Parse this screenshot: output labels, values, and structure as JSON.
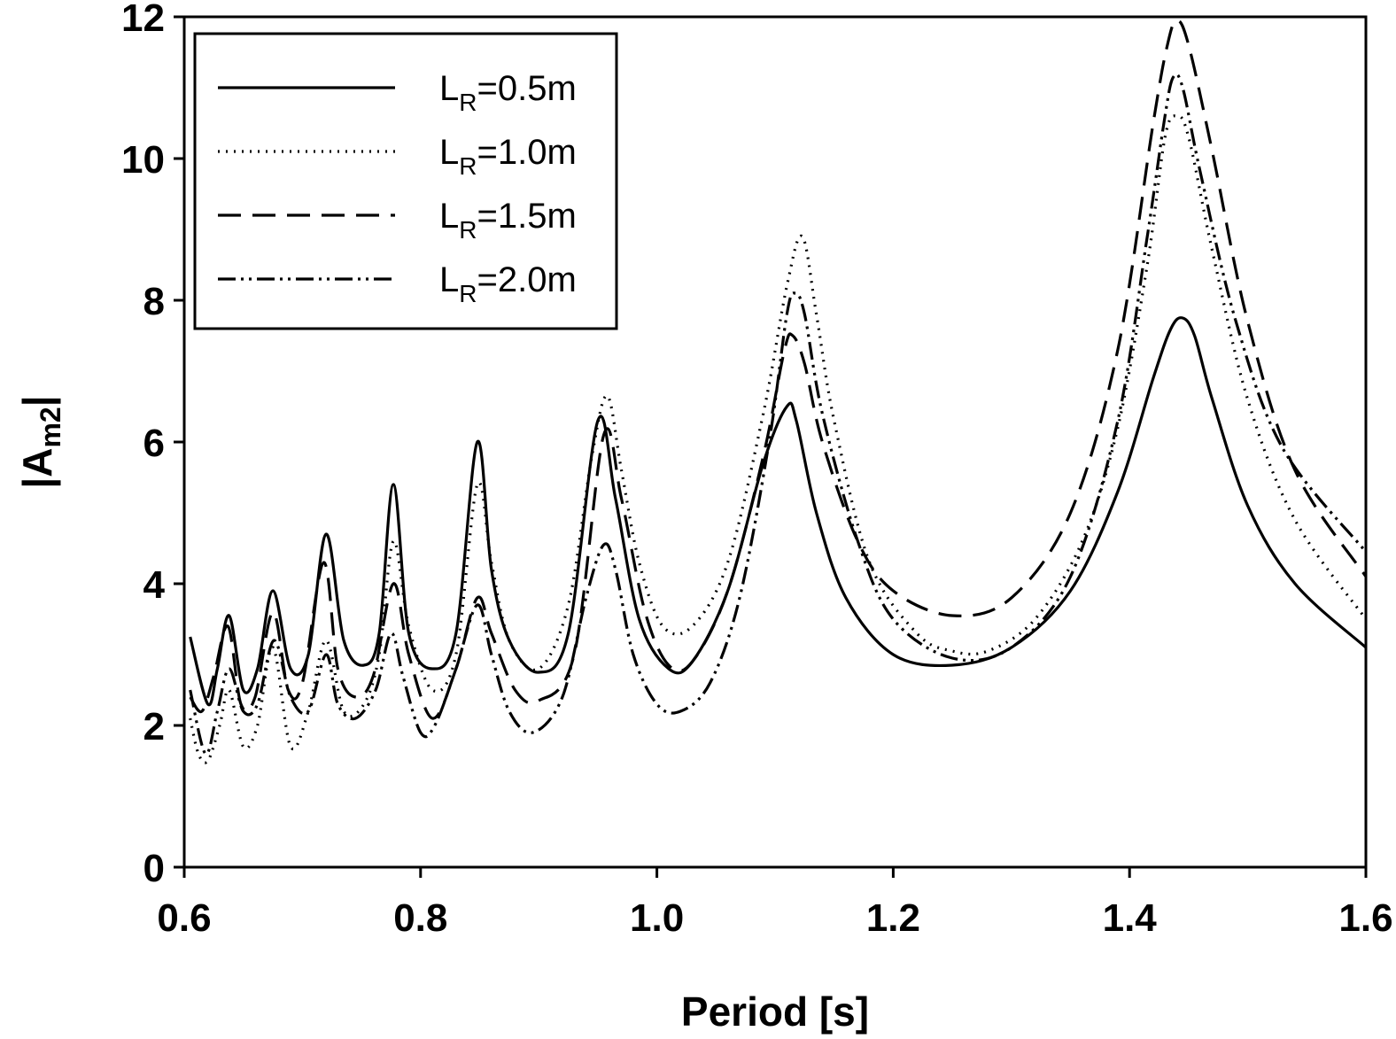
{
  "chart_data": {
    "type": "line",
    "title": "",
    "xlabel": "Period [s]",
    "ylabel_main": "|A",
    "ylabel_sub": "m2",
    "ylabel_end": "|",
    "xlim": [
      0.6,
      1.6
    ],
    "ylim": [
      0,
      12
    ],
    "xticks": [
      {
        "value": 0.6,
        "label": "0.6"
      },
      {
        "value": 0.8,
        "label": "0.8"
      },
      {
        "value": 1.0,
        "label": "1.0"
      },
      {
        "value": 1.2,
        "label": "1.2"
      },
      {
        "value": 1.4,
        "label": "1.4"
      },
      {
        "value": 1.6,
        "label": "1.6"
      }
    ],
    "yticks": [
      {
        "value": 0,
        "label": "0"
      },
      {
        "value": 2,
        "label": "2"
      },
      {
        "value": 4,
        "label": "4"
      },
      {
        "value": 6,
        "label": "6"
      },
      {
        "value": 8,
        "label": "8"
      },
      {
        "value": 10,
        "label": "10"
      },
      {
        "value": 12,
        "label": "12"
      }
    ],
    "grid": false,
    "legend_position": "top-left",
    "series": [
      {
        "name": "LR=0.5m",
        "legend_main": "L",
        "legend_sub": "R",
        "legend_rest": "=0.5m",
        "dash": "none",
        "x": [
          0.605,
          0.62,
          0.628,
          0.638,
          0.65,
          0.662,
          0.675,
          0.69,
          0.705,
          0.72,
          0.735,
          0.752,
          0.765,
          0.777,
          0.79,
          0.81,
          0.83,
          0.848,
          0.86,
          0.875,
          0.9,
          0.925,
          0.95,
          0.965,
          0.985,
          1.01,
          1.03,
          1.06,
          1.09,
          1.11,
          1.118,
          1.135,
          1.16,
          1.2,
          1.25,
          1.3,
          1.35,
          1.39,
          1.42,
          1.435,
          1.445,
          1.455,
          1.47,
          1.5,
          1.54,
          1.6
        ],
        "y": [
          3.25,
          2.3,
          2.8,
          3.55,
          2.5,
          2.8,
          3.9,
          2.8,
          3.0,
          4.7,
          3.2,
          2.85,
          3.3,
          5.4,
          3.3,
          2.8,
          3.3,
          6.0,
          4.2,
          3.2,
          2.75,
          3.3,
          6.3,
          5.2,
          3.5,
          2.8,
          2.9,
          3.9,
          5.7,
          6.5,
          6.3,
          5.0,
          3.8,
          3.0,
          2.85,
          3.1,
          3.9,
          5.3,
          6.9,
          7.6,
          7.75,
          7.5,
          6.6,
          5.1,
          4.0,
          3.1
        ]
      },
      {
        "name": "LR=1.0m",
        "legend_main": "L",
        "legend_sub": "R",
        "legend_rest": "=1.0m",
        "dash": "2 7",
        "x": [
          0.605,
          0.612,
          0.62,
          0.63,
          0.638,
          0.65,
          0.662,
          0.675,
          0.69,
          0.705,
          0.72,
          0.735,
          0.752,
          0.765,
          0.777,
          0.79,
          0.81,
          0.83,
          0.848,
          0.86,
          0.875,
          0.9,
          0.925,
          0.945,
          0.958,
          0.97,
          0.985,
          1.005,
          1.03,
          1.06,
          1.09,
          1.11,
          1.123,
          1.135,
          1.15,
          1.18,
          1.22,
          1.25,
          1.28,
          1.32,
          1.36,
          1.39,
          1.415,
          1.43,
          1.44,
          1.45,
          1.47,
          1.5,
          1.54,
          1.6
        ],
        "y": [
          2.1,
          1.6,
          1.5,
          2.0,
          2.5,
          1.7,
          2.0,
          3.1,
          1.7,
          2.2,
          3.2,
          2.2,
          2.3,
          3.0,
          4.6,
          3.4,
          2.5,
          3.0,
          5.4,
          4.3,
          3.2,
          2.8,
          3.7,
          5.8,
          6.65,
          5.6,
          4.3,
          3.4,
          3.4,
          4.3,
          6.4,
          8.2,
          8.9,
          7.8,
          6.3,
          4.3,
          3.3,
          3.05,
          3.05,
          3.5,
          4.6,
          6.2,
          8.5,
          10.3,
          10.6,
          10.3,
          8.7,
          6.6,
          4.9,
          3.5
        ]
      },
      {
        "name": "LR=1.5m",
        "legend_main": "L",
        "legend_sub": "R",
        "legend_rest": "=1.5m",
        "dash": "26 13",
        "x": [
          0.605,
          0.615,
          0.625,
          0.637,
          0.648,
          0.66,
          0.675,
          0.688,
          0.7,
          0.718,
          0.73,
          0.745,
          0.76,
          0.777,
          0.79,
          0.81,
          0.83,
          0.848,
          0.86,
          0.88,
          0.9,
          0.93,
          0.955,
          0.97,
          0.99,
          1.01,
          1.03,
          1.06,
          1.09,
          1.108,
          1.115,
          1.125,
          1.14,
          1.17,
          1.2,
          1.25,
          1.3,
          1.35,
          1.39,
          1.42,
          1.432,
          1.44,
          1.45,
          1.47,
          1.5,
          1.54,
          1.6
        ],
        "y": [
          2.4,
          2.2,
          2.7,
          3.4,
          2.3,
          2.4,
          3.6,
          2.5,
          2.6,
          4.3,
          2.8,
          2.4,
          2.7,
          4.0,
          3.0,
          2.1,
          2.8,
          3.8,
          3.3,
          2.5,
          2.35,
          3.0,
          6.1,
          5.2,
          3.6,
          2.85,
          2.9,
          3.9,
          5.8,
          7.3,
          7.5,
          7.1,
          6.0,
          4.6,
          3.9,
          3.55,
          3.8,
          5.0,
          7.3,
          10.5,
          11.6,
          11.95,
          11.6,
          10.1,
          7.7,
          5.6,
          4.1
        ]
      },
      {
        "name": "LR=2.0m",
        "legend_main": "L",
        "legend_sub": "R",
        "legend_rest": "=2.0m",
        "dash": "20 6 3 6 3 6",
        "x": [
          0.605,
          0.618,
          0.628,
          0.638,
          0.65,
          0.662,
          0.676,
          0.69,
          0.705,
          0.72,
          0.73,
          0.745,
          0.762,
          0.775,
          0.785,
          0.8,
          0.812,
          0.83,
          0.848,
          0.86,
          0.875,
          0.895,
          0.92,
          0.94,
          0.955,
          0.965,
          0.98,
          1.0,
          1.02,
          1.045,
          1.07,
          1.095,
          1.11,
          1.117,
          1.125,
          1.14,
          1.17,
          1.2,
          1.25,
          1.3,
          1.35,
          1.39,
          1.415,
          1.43,
          1.437,
          1.445,
          1.46,
          1.49,
          1.53,
          1.6
        ],
        "y": [
          2.5,
          1.6,
          2.2,
          2.8,
          2.2,
          2.3,
          3.2,
          2.4,
          2.2,
          3.0,
          2.3,
          2.1,
          2.5,
          3.3,
          2.7,
          1.9,
          2.0,
          2.8,
          3.7,
          3.0,
          2.2,
          1.9,
          2.4,
          3.8,
          4.55,
          4.2,
          3.0,
          2.3,
          2.2,
          2.6,
          3.8,
          6.0,
          7.8,
          8.1,
          7.8,
          6.4,
          4.6,
          3.5,
          2.95,
          3.1,
          4.1,
          6.3,
          8.9,
          10.6,
          11.15,
          11.0,
          9.8,
          7.7,
          5.9,
          4.45
        ]
      }
    ]
  }
}
